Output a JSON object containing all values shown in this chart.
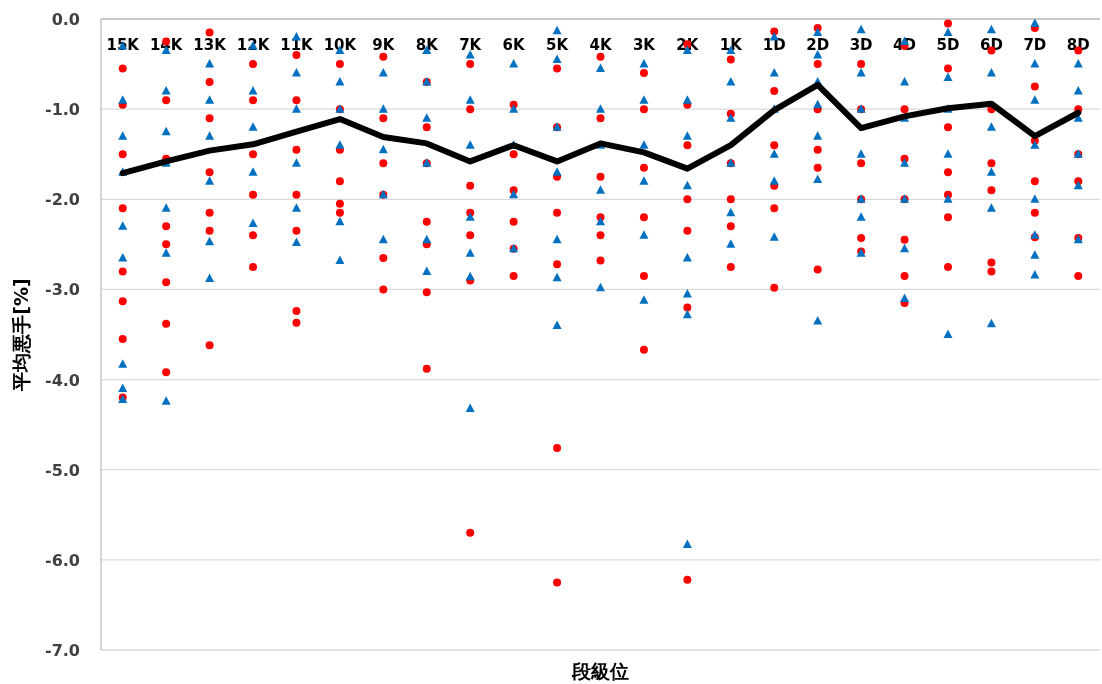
{
  "chart_data": {
    "type": "scatter",
    "xlabel": "段級位",
    "ylabel": "平均悪手[%]",
    "categories": [
      "15K",
      "14K",
      "13K",
      "12K",
      "11K",
      "10K",
      "9K",
      "8K",
      "7K",
      "6K",
      "5K",
      "4K",
      "3K",
      "2K",
      "1K",
      "1D",
      "2D",
      "3D",
      "4D",
      "5D",
      "6D",
      "7D",
      "8D"
    ],
    "ylim": [
      -7,
      0
    ],
    "yticks": [
      {
        "value": -7,
        "label": "-7.0"
      },
      {
        "value": -6,
        "label": "-6.0"
      },
      {
        "value": -5,
        "label": "-5.0"
      },
      {
        "value": -4,
        "label": "-4.0"
      },
      {
        "value": -3,
        "label": "-3.0"
      },
      {
        "value": -2,
        "label": "-2.0"
      },
      {
        "value": -1,
        "label": "-1.0"
      },
      {
        "value": 0,
        "label": "0.0"
      }
    ],
    "grid": "y",
    "series": [
      {
        "type": "scatter",
        "marker": "circle",
        "color": "#ff0000",
        "x": [
          "15K",
          "15K",
          "15K",
          "15K",
          "15K",
          "15K",
          "15K",
          "15K",
          "14K",
          "14K",
          "14K",
          "14K",
          "14K",
          "14K",
          "14K",
          "14K",
          "13K",
          "13K",
          "13K",
          "13K",
          "13K",
          "13K",
          "13K",
          "12K",
          "12K",
          "12K",
          "12K",
          "12K",
          "12K",
          "11K",
          "11K",
          "11K",
          "11K",
          "11K",
          "11K",
          "11K",
          "10K",
          "10K",
          "10K",
          "10K",
          "10K",
          "10K",
          "9K",
          "9K",
          "9K",
          "9K",
          "9K",
          "9K",
          "8K",
          "8K",
          "8K",
          "8K",
          "8K",
          "8K",
          "8K",
          "7K",
          "7K",
          "7K",
          "7K",
          "7K",
          "7K",
          "7K",
          "6K",
          "6K",
          "6K",
          "6K",
          "6K",
          "6K",
          "5K",
          "5K",
          "5K",
          "5K",
          "5K",
          "5K",
          "5K",
          "4K",
          "4K",
          "4K",
          "4K",
          "4K",
          "4K",
          "3K",
          "3K",
          "3K",
          "3K",
          "3K",
          "3K",
          "2K",
          "2K",
          "2K",
          "2K",
          "2K",
          "2K",
          "2K",
          "1K",
          "1K",
          "1K",
          "1K",
          "1K",
          "1K",
          "1D",
          "1D",
          "1D",
          "1D",
          "1D",
          "1D",
          "2D",
          "2D",
          "2D",
          "2D",
          "2D",
          "2D",
          "3D",
          "3D",
          "3D",
          "3D",
          "3D",
          "3D",
          "4D",
          "4D",
          "4D",
          "4D",
          "4D",
          "4D",
          "4D",
          "5D",
          "5D",
          "5D",
          "5D",
          "5D",
          "5D",
          "5D",
          "6D",
          "6D",
          "6D",
          "6D",
          "6D",
          "6D",
          "7D",
          "7D",
          "7D",
          "7D",
          "7D",
          "7D",
          "8D",
          "8D",
          "8D",
          "8D",
          "8D",
          "8D"
        ],
        "values": [
          -0.55,
          -0.95,
          -1.5,
          -2.1,
          -2.8,
          -3.13,
          -3.55,
          -4.2,
          -0.25,
          -0.9,
          -1.55,
          -2.3,
          -2.5,
          -2.92,
          -3.38,
          -3.92,
          -0.15,
          -0.7,
          -1.1,
          -1.7,
          -2.15,
          -2.35,
          -3.62,
          -0.5,
          -0.9,
          -1.5,
          -1.95,
          -2.4,
          -2.75,
          -0.4,
          -0.9,
          -1.45,
          -1.95,
          -2.35,
          -3.24,
          -3.37,
          -0.5,
          -1.0,
          -1.45,
          -1.8,
          -2.05,
          -2.15,
          -0.42,
          -1.1,
          -1.6,
          -1.95,
          -2.65,
          -3.0,
          -0.7,
          -1.2,
          -1.6,
          -2.25,
          -2.5,
          -3.03,
          -3.88,
          -0.5,
          -1.0,
          -1.85,
          -2.15,
          -2.4,
          -2.9,
          -5.7,
          -0.95,
          -1.5,
          -1.9,
          -2.25,
          -2.55,
          -2.85,
          -0.55,
          -1.2,
          -1.75,
          -2.15,
          -2.72,
          -4.76,
          -6.25,
          -0.42,
          -1.1,
          -1.75,
          -2.2,
          -2.4,
          -2.68,
          -0.6,
          -1.0,
          -1.65,
          -2.2,
          -2.85,
          -3.67,
          -0.28,
          -0.95,
          -1.4,
          -2.0,
          -2.35,
          -3.2,
          -6.22,
          -0.45,
          -1.05,
          -1.6,
          -2.0,
          -2.3,
          -2.75,
          -0.14,
          -0.8,
          -1.4,
          -1.85,
          -2.1,
          -2.98,
          -0.1,
          -0.5,
          -1.0,
          -1.45,
          -1.65,
          -2.78,
          -0.5,
          -1.0,
          -1.6,
          -2.0,
          -2.43,
          -2.58,
          -0.3,
          -1.0,
          -1.55,
          -2.0,
          -2.45,
          -2.85,
          -3.15,
          -0.05,
          -0.55,
          -1.2,
          -1.7,
          -1.95,
          -2.2,
          -2.75,
          -0.35,
          -1.0,
          -1.6,
          -1.9,
          -2.7,
          -2.8,
          -0.1,
          -0.75,
          -1.35,
          -1.8,
          -2.15,
          -2.42,
          -0.35,
          -1.0,
          -1.5,
          -1.8,
          -2.43,
          -2.85
        ]
      },
      {
        "type": "scatter",
        "marker": "triangle",
        "color": "#0070c0",
        "x": [
          "15K",
          "15K",
          "15K",
          "15K",
          "15K",
          "15K",
          "15K",
          "15K",
          "15K",
          "14K",
          "14K",
          "14K",
          "14K",
          "14K",
          "14K",
          "14K",
          "13K",
          "13K",
          "13K",
          "13K",
          "13K",
          "13K",
          "12K",
          "12K",
          "12K",
          "12K",
          "12K",
          "11K",
          "11K",
          "11K",
          "11K",
          "11K",
          "11K",
          "10K",
          "10K",
          "10K",
          "10K",
          "10K",
          "10K",
          "9K",
          "9K",
          "9K",
          "9K",
          "9K",
          "8K",
          "8K",
          "8K",
          "8K",
          "8K",
          "8K",
          "7K",
          "7K",
          "7K",
          "7K",
          "7K",
          "7K",
          "7K",
          "6K",
          "6K",
          "6K",
          "6K",
          "6K",
          "5K",
          "5K",
          "5K",
          "5K",
          "5K",
          "5K",
          "5K",
          "4K",
          "4K",
          "4K",
          "4K",
          "4K",
          "4K",
          "3K",
          "3K",
          "3K",
          "3K",
          "3K",
          "3K",
          "2K",
          "2K",
          "2K",
          "2K",
          "2K",
          "2K",
          "2K",
          "2K",
          "1K",
          "1K",
          "1K",
          "1K",
          "1K",
          "1K",
          "1D",
          "1D",
          "1D",
          "1D",
          "1D",
          "1D",
          "2D",
          "2D",
          "2D",
          "2D",
          "2D",
          "2D",
          "2D",
          "3D",
          "3D",
          "3D",
          "3D",
          "3D",
          "3D",
          "3D",
          "4D",
          "4D",
          "4D",
          "4D",
          "4D",
          "4D",
          "4D",
          "5D",
          "5D",
          "5D",
          "5D",
          "5D",
          "5D",
          "6D",
          "6D",
          "6D",
          "6D",
          "6D",
          "6D",
          "7D",
          "7D",
          "7D",
          "7D",
          "7D",
          "7D",
          "7D",
          "7D",
          "8D",
          "8D",
          "8D",
          "8D",
          "8D",
          "8D"
        ],
        "values": [
          -0.3,
          -0.9,
          -1.3,
          -1.7,
          -2.3,
          -2.65,
          -3.83,
          -4.1,
          -4.22,
          -0.35,
          -0.8,
          -1.25,
          -1.6,
          -2.1,
          -2.6,
          -4.24,
          -0.5,
          -0.9,
          -1.3,
          -1.8,
          -2.47,
          -2.88,
          -0.3,
          -0.8,
          -1.2,
          -1.7,
          -2.27,
          -0.2,
          -0.6,
          -1.0,
          -1.6,
          -2.1,
          -2.48,
          -0.35,
          -0.7,
          -1.0,
          -1.4,
          -2.25,
          -2.68,
          -0.6,
          -1.0,
          -1.45,
          -1.95,
          -2.45,
          -0.35,
          -0.7,
          -1.1,
          -1.6,
          -2.45,
          -2.8,
          -0.4,
          -0.9,
          -1.4,
          -2.2,
          -2.6,
          -2.86,
          -4.32,
          -0.5,
          -1.0,
          -1.4,
          -1.95,
          -2.55,
          -0.13,
          -0.45,
          -1.2,
          -1.7,
          -2.45,
          -2.87,
          -3.4,
          -0.55,
          -1.0,
          -1.4,
          -1.9,
          -2.25,
          -2.98,
          -0.5,
          -0.9,
          -1.4,
          -1.8,
          -2.4,
          -3.12,
          -0.35,
          -0.9,
          -1.3,
          -1.85,
          -2.65,
          -3.05,
          -3.28,
          -5.83,
          -0.35,
          -0.7,
          -1.1,
          -1.6,
          -2.15,
          -2.5,
          -0.2,
          -0.6,
          -1.0,
          -1.5,
          -1.8,
          -2.42,
          -0.15,
          -0.4,
          -0.7,
          -0.95,
          -1.3,
          -1.78,
          -3.35,
          -0.12,
          -0.6,
          -1.0,
          -1.5,
          -2.0,
          -2.2,
          -2.6,
          -0.25,
          -0.7,
          -1.1,
          -1.6,
          -2.0,
          -2.55,
          -3.1,
          -0.15,
          -0.65,
          -1.0,
          -1.5,
          -2.0,
          -3.5,
          -0.12,
          -0.6,
          -1.2,
          -1.7,
          -2.1,
          -3.38,
          -0.05,
          -0.5,
          -0.9,
          -1.4,
          -2.0,
          -2.4,
          -2.62,
          -2.84,
          -0.5,
          -0.8,
          -1.1,
          -1.5,
          -1.85,
          -2.45
        ]
      },
      {
        "type": "line",
        "marker": "none",
        "color": "#000000",
        "values": [
          -1.71,
          -1.58,
          -1.46,
          -1.39,
          -1.25,
          -1.11,
          -1.31,
          -1.38,
          -1.58,
          -1.4,
          -1.58,
          -1.38,
          -1.48,
          -1.66,
          -1.4,
          -1.01,
          -0.73,
          -1.21,
          -1.08,
          -0.99,
          -0.94,
          -1.3,
          -1.04
        ]
      }
    ]
  }
}
